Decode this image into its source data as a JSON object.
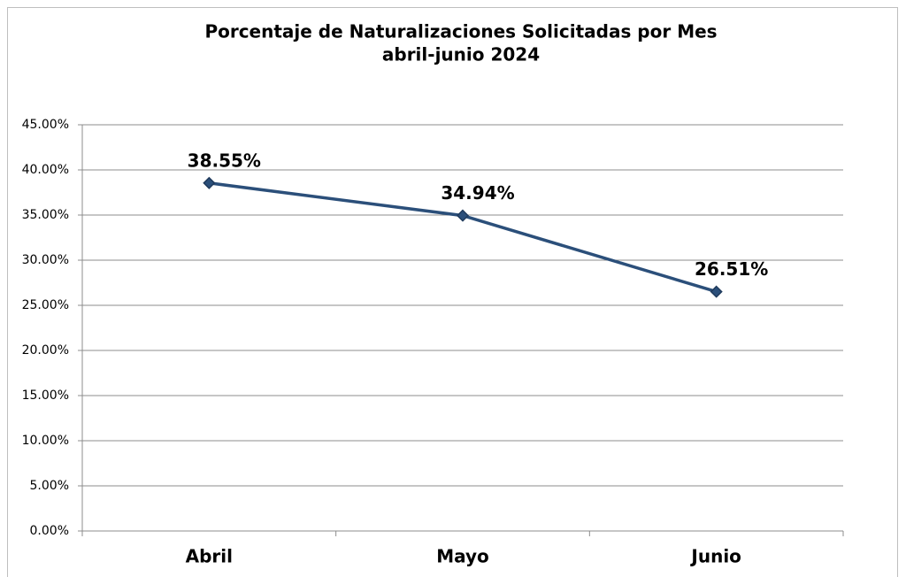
{
  "chart_data": {
    "type": "line",
    "title": "Porcentaje de Naturalizaciones Solicitadas por Mes",
    "subtitle": "abril-junio 2024",
    "categories": [
      "Abril",
      "Mayo",
      "Junio"
    ],
    "series": [
      {
        "color": "#2b4f7a",
        "values": [
          38.55,
          34.94,
          26.51
        ],
        "value_labels": [
          "38.55%",
          "34.94%",
          "26.51%"
        ]
      }
    ],
    "ylim": [
      0,
      45
    ],
    "yticks": [
      {
        "value": 0,
        "label": "0.00%"
      },
      {
        "value": 5,
        "label": "5.00%"
      },
      {
        "value": 10,
        "label": "10.00%"
      },
      {
        "value": 15,
        "label": "15.00%"
      },
      {
        "value": 20,
        "label": "20.00%"
      },
      {
        "value": 25,
        "label": "25.00%"
      },
      {
        "value": 30,
        "label": "30.00%"
      },
      {
        "value": 35,
        "label": "35.00%"
      },
      {
        "value": 40,
        "label": "40.00%"
      },
      {
        "value": 45,
        "label": "45.00%"
      }
    ],
    "grid": true
  }
}
